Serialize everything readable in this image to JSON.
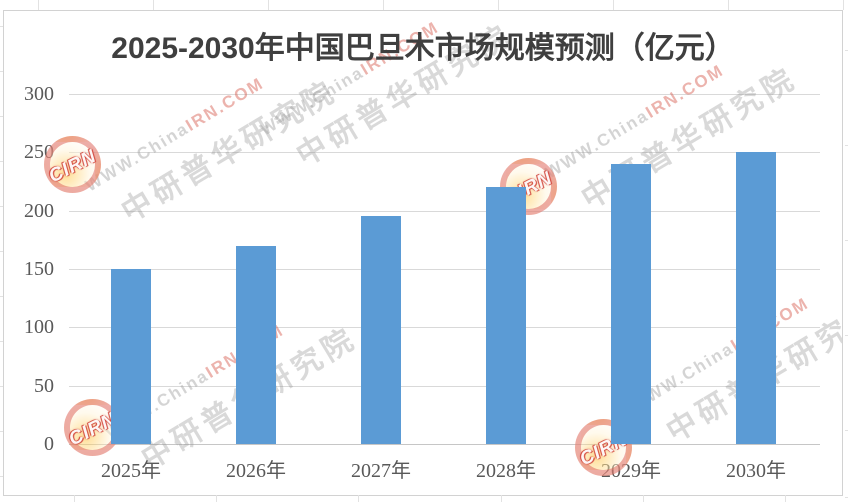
{
  "chart_data": {
    "type": "bar",
    "title": "2025-2030年中国巴旦木市场规模预测（亿元）",
    "categories": [
      "2025年",
      "2026年",
      "2027年",
      "2028年",
      "2029年",
      "2030年"
    ],
    "values": [
      150,
      170,
      195,
      220,
      240,
      250
    ],
    "xlabel": "",
    "ylabel": "",
    "ylim": [
      0,
      300
    ],
    "ytick_interval": 50,
    "yticks": [
      0,
      50,
      100,
      150,
      200,
      250,
      300
    ],
    "grid": true,
    "legend": false,
    "bar_color": "#5B9BD5"
  },
  "watermark": {
    "url_gray_part": "WWW.China",
    "url_red_part": "IRN.COM",
    "org_text": "中研普华研究院",
    "logo_text": "CIRN"
  },
  "colors": {
    "bar": "#5B9BD5",
    "gridline": "#D9D9D9",
    "axis_label": "#595959",
    "title": "#3F3F3F",
    "chart_border": "#D2D2D2"
  }
}
